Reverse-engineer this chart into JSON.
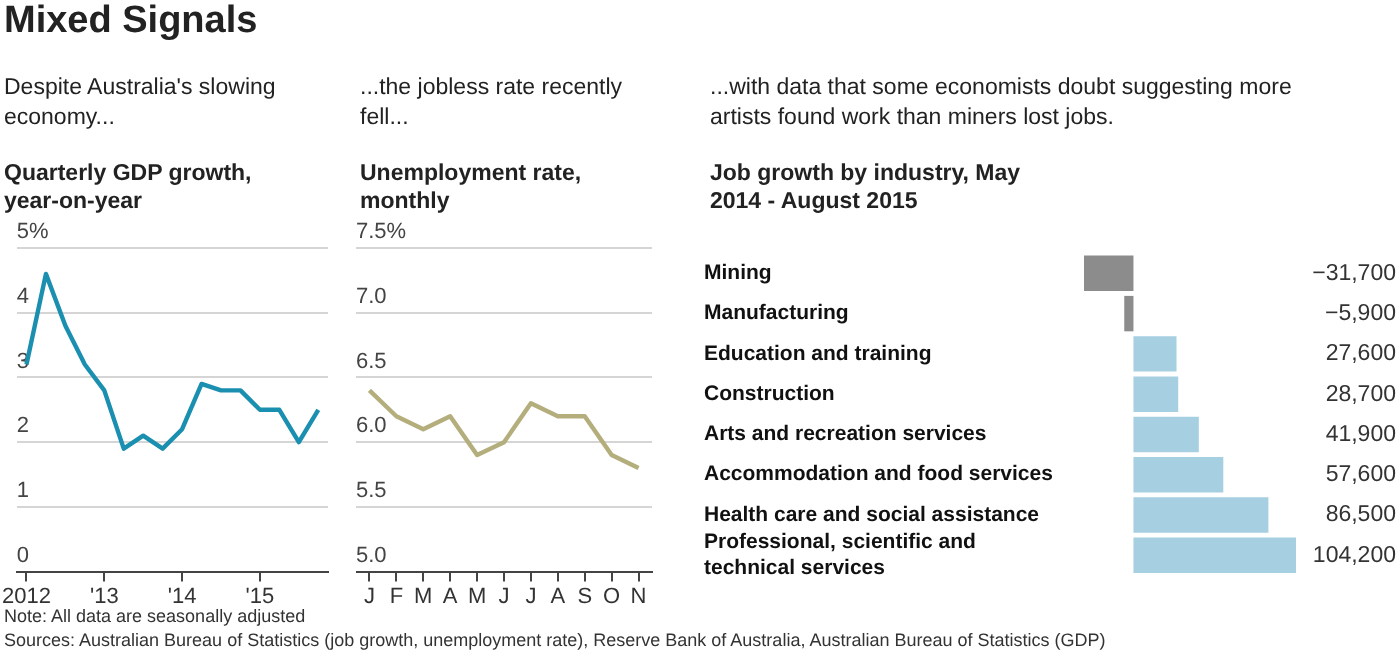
{
  "chart_data": [
    {
      "type": "other",
      "title": "Mixed Signals",
      "annotations": [
        "Note: All data are seasonally adjusted",
        "Sources: Australian Bureau of Statistics (job growth, unemployment rate), Reserve Bank of Australia, Australian Bureau of Statistics (GDP)"
      ]
    },
    {
      "type": "line",
      "subtitle": "Despite Australia's slowing economy...",
      "title": "Quarterly GDP growth, year-on-year",
      "categories": [
        "2012",
        null,
        null,
        null,
        "'13",
        null,
        null,
        null,
        "'14",
        null,
        null,
        null,
        "'15",
        null,
        null,
        null
      ],
      "series": [
        {
          "color": "#1a8fb0",
          "values": [
            3.2,
            4.6,
            3.8,
            3.2,
            2.8,
            1.9,
            2.1,
            1.9,
            2.2,
            2.9,
            2.8,
            2.8,
            2.5,
            2.5,
            2.0,
            2.5
          ]
        }
      ],
      "ylim": [
        0,
        5
      ],
      "yticks": [
        0,
        1,
        2,
        3,
        4,
        {
          "value": 5,
          "label": "5%"
        }
      ],
      "grid": "y",
      "legend": false,
      "marker": "none"
    },
    {
      "type": "line",
      "subtitle": "...the jobless rate recently fell...",
      "title": "Unemployment rate, monthly",
      "categories": [
        "J",
        "F",
        "M",
        "A",
        "M",
        "J",
        "J",
        "A",
        "S",
        "O",
        "N"
      ],
      "series": [
        {
          "color": "#b3ae7c",
          "values": [
            6.4,
            6.2,
            6.1,
            6.2,
            5.9,
            6.0,
            6.3,
            6.2,
            6.2,
            5.9,
            5.8
          ]
        }
      ],
      "ylim": [
        5,
        7.5
      ],
      "yticks": [
        {
          "value": 5,
          "label": "5.0"
        },
        5.5,
        {
          "value": 6,
          "label": "6.0"
        },
        6.5,
        {
          "value": 7,
          "label": "7.0"
        },
        {
          "value": 7.5,
          "label": "7.5%"
        }
      ],
      "grid": "y",
      "legend": false,
      "marker": "none"
    },
    {
      "type": "bar",
      "orientation": "horizontal",
      "subtitle": "...with data that some economists doubt suggesting more artists found work than miners lost jobs.",
      "title": "Job growth by industry, May 2014 - August 2015",
      "categories": [
        "Mining",
        "Manufacturing",
        "Education and training",
        "Construction",
        "Arts and recreation services",
        "Accommodation and food services",
        "Health care and social assistance",
        "Professional, scientific and technical services"
      ],
      "values": [
        -31700,
        -5900,
        27600,
        28700,
        41900,
        57600,
        86500,
        104200
      ],
      "colors": [
        "#8c8c8c",
        "#8c8c8c",
        "#a6cfe2",
        "#a6cfe2",
        "#a6cfe2",
        "#a6cfe2",
        "#a6cfe2",
        "#a6cfe2"
      ],
      "value_labels": [
        "−31,700",
        "−5,900",
        "27,600",
        "28,700",
        "41,900",
        "57,600",
        "86,500",
        "104,200"
      ],
      "legend": false,
      "grid": false
    }
  ]
}
